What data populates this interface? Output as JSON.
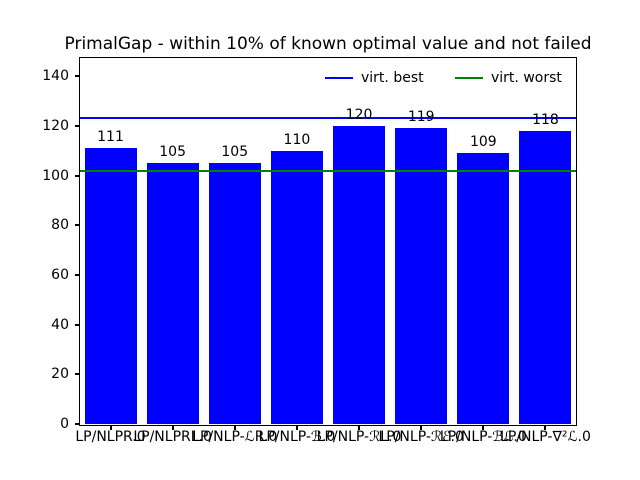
{
  "title": "PrimalGap - within 10% of known optimal value and not failed",
  "legend": [
    {
      "label": "virt. best",
      "color": "#0000ff"
    },
    {
      "label": "virt. worst",
      "color": "#008000"
    }
  ],
  "chart_data": {
    "type": "bar",
    "title": "PrimalGap - within 10% of known optimal value and not failed",
    "categories": [
      "LP/NLPR.0",
      "LP/NLPRL.0",
      "LP/NLP-ℒR.0",
      "LP/NLP-ℬ.0",
      "LP/NLP-ℛL.0",
      "LP/NLP-ℛℰ.0",
      "LP/NLP-ℬℒ.0",
      "LP/NLP-∇²ℒ.0"
    ],
    "values": [
      111,
      105,
      105,
      110,
      120,
      119,
      109,
      118
    ],
    "bar_color": "#0000ff",
    "value_labels_shown": true,
    "reference_lines": [
      {
        "name": "virt. best",
        "value": 123,
        "color": "#0000ff"
      },
      {
        "name": "virt. worst",
        "value": 102,
        "color": "#008000"
      }
    ],
    "xlabel": "",
    "ylabel": "",
    "ylim": [
      0,
      147
    ],
    "yticks": [
      0,
      20,
      40,
      60,
      80,
      100,
      120,
      140
    ],
    "grid": false,
    "axis_color": "#000000",
    "legend_position": "upper right, horizontal, no frame"
  }
}
